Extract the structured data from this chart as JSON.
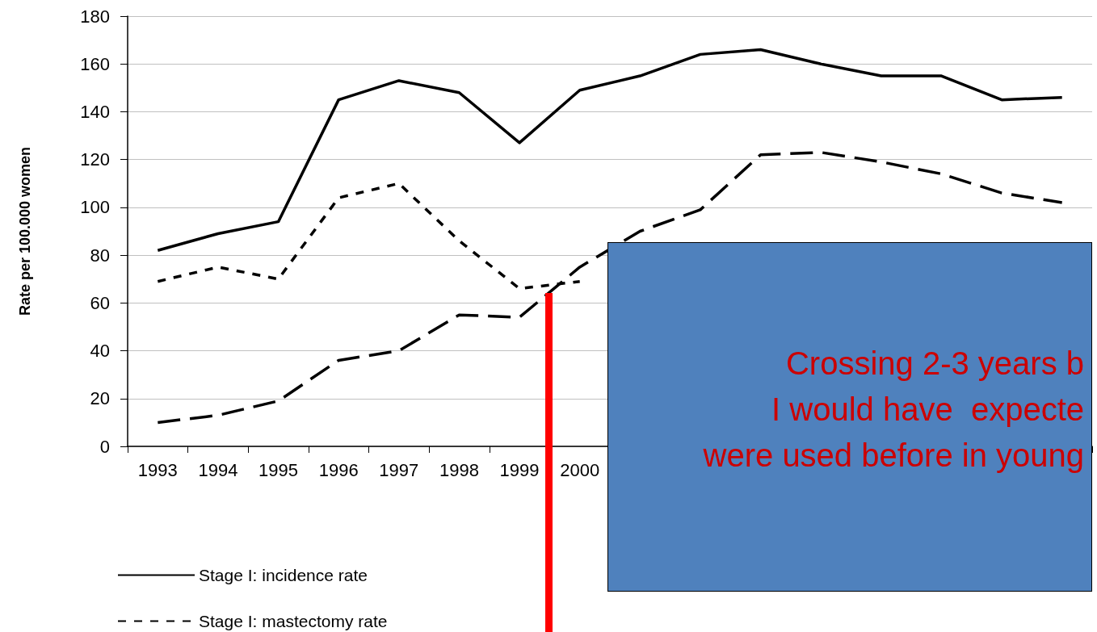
{
  "chart_data": {
    "type": "line",
    "ylabel": "Rate per 100.000 women",
    "categories": [
      "1993",
      "1994",
      "1995",
      "1996",
      "1997",
      "1998",
      "1999",
      "2000",
      null,
      null,
      null,
      null,
      null,
      null,
      null,
      null
    ],
    "series": [
      {
        "name": "Stage I: incidence rate",
        "color": "#000000",
        "line_style": "solid",
        "values": [
          82,
          89,
          94,
          145,
          153,
          148,
          127,
          149,
          155,
          164,
          166,
          160,
          155,
          155,
          145,
          146
        ]
      },
      {
        "name": "Stage I: mastectomy rate",
        "color": "#000000",
        "line_style": "dotted",
        "values": [
          69,
          75,
          70,
          104,
          110,
          86,
          66,
          69,
          null,
          null,
          null,
          null,
          null,
          null,
          null,
          null
        ]
      },
      {
        "color": "#000000",
        "line_style": "dashed",
        "values": [
          10,
          13,
          19,
          36,
          40,
          55,
          54,
          75,
          90,
          99,
          122,
          123,
          119,
          114,
          106,
          102
        ]
      }
    ],
    "ylim": [
      0,
      180
    ],
    "yticks": [
      0,
      20,
      40,
      60,
      80,
      100,
      120,
      140,
      160,
      180
    ],
    "grid": "y",
    "legend": "bottom left",
    "annotations": [
      "Crossing 2-3 years b\nI would have  expecte\nwere used before in young"
    ]
  }
}
